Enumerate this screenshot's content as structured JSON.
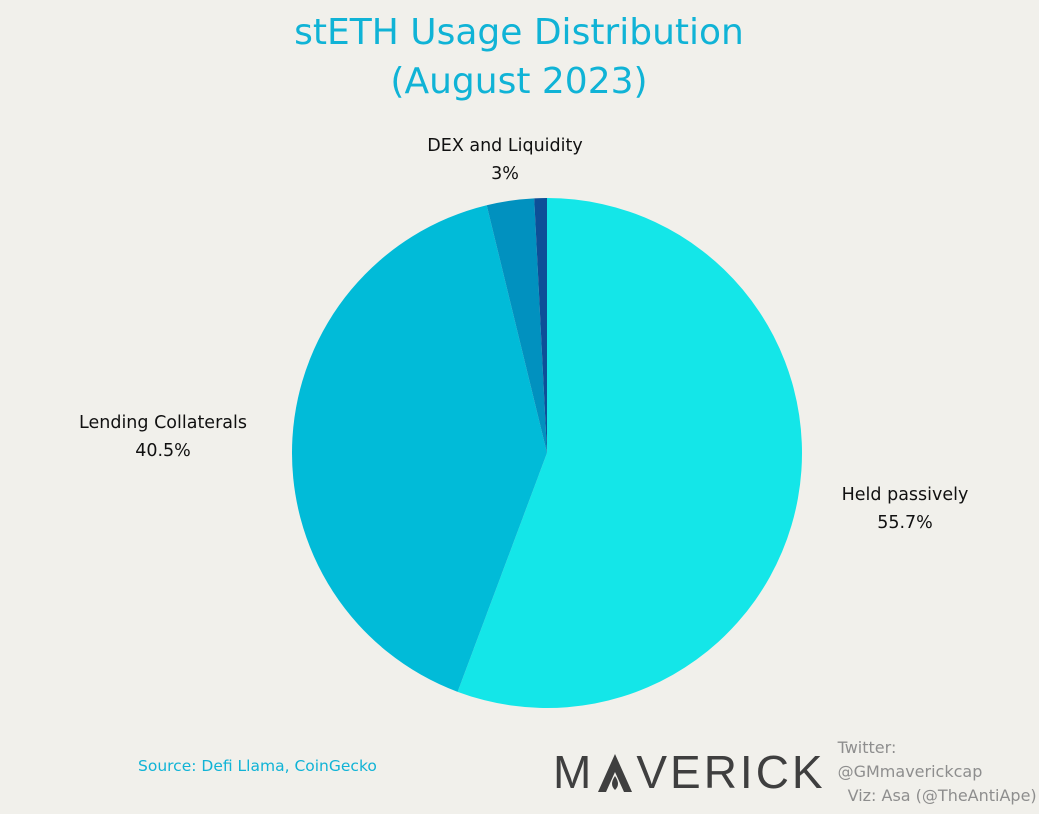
{
  "chart_data": {
    "type": "pie",
    "title": "stETH Usage Distribution",
    "subtitle": "(August 2023)",
    "slices": [
      {
        "label": "Held passively",
        "value_label": "55.7%",
        "value": 55.7,
        "color": "#14e6e8"
      },
      {
        "label": "Lending Collaterals",
        "value_label": "40.5%",
        "value": 40.5,
        "color": "#01bbd8"
      },
      {
        "label": "DEX and Liquidity",
        "value_label": "3%",
        "value": 3.0,
        "color": "#0191bf"
      },
      {
        "label": "",
        "value_label": "",
        "value": 0.8,
        "color": "#0d4f98"
      }
    ]
  },
  "footer": {
    "source": "Source: Defi Llama, CoinGecko",
    "brand_prefix": "M",
    "brand_suffix": "VERICK",
    "twitter": "Twitter: @GMmaverickcap",
    "viz": "Viz: Asa (@TheAntiApe)"
  }
}
